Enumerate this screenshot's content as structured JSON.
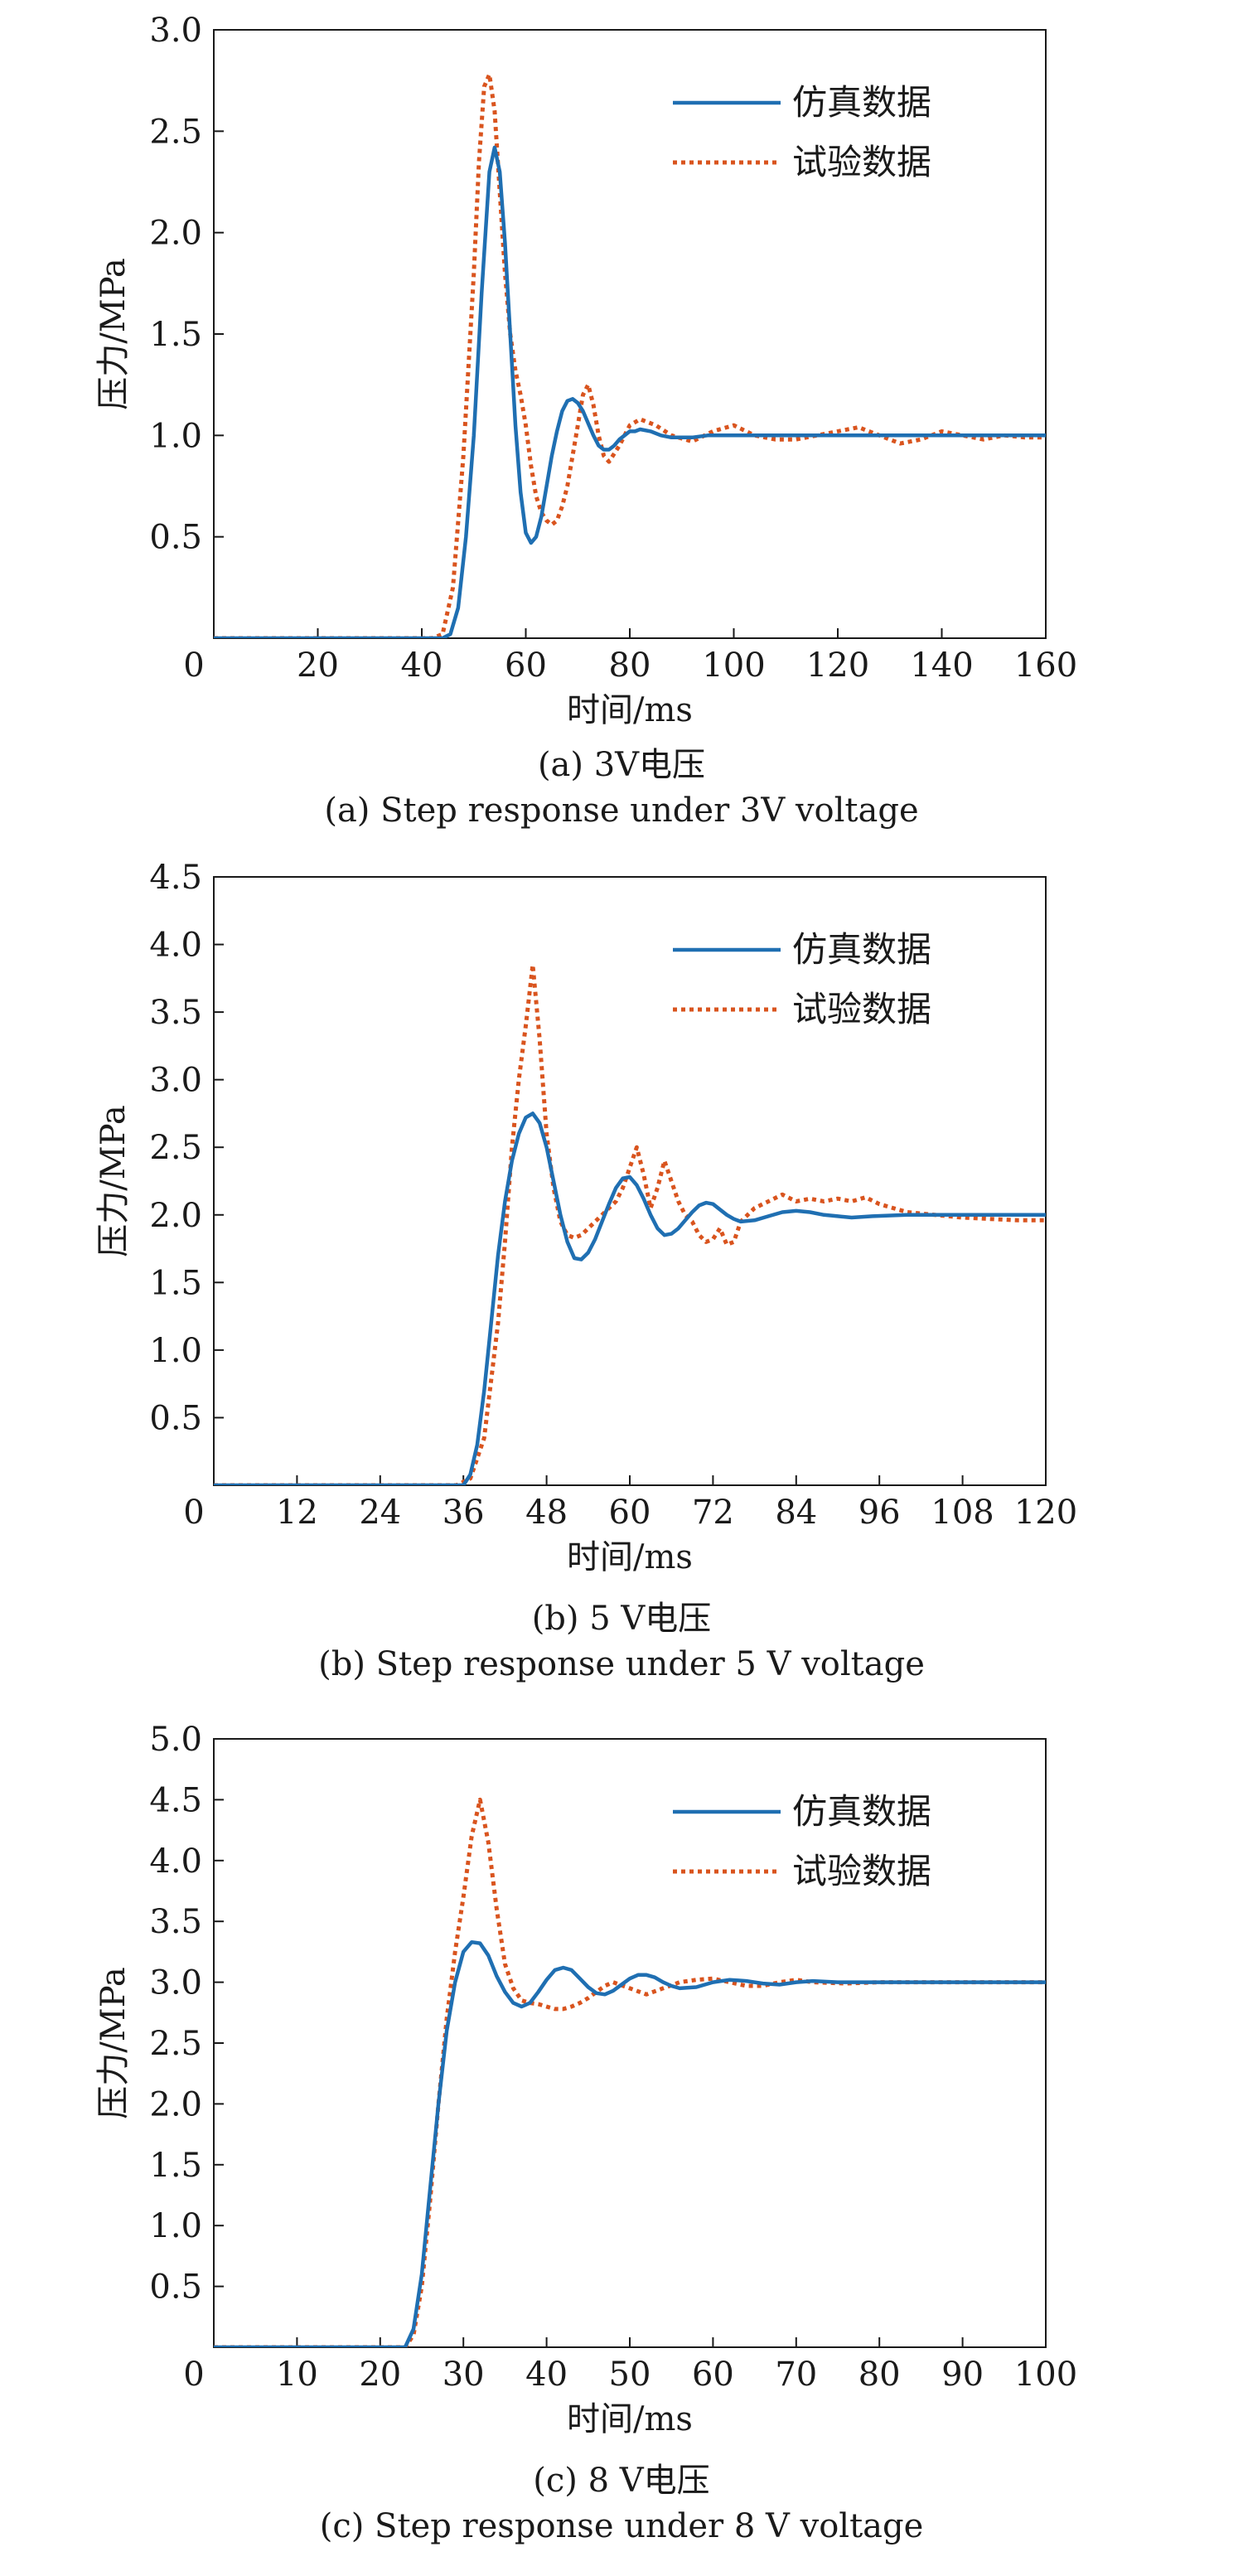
{
  "colors": {
    "sim": "#1f6fb2",
    "test": "#d9541e",
    "axis": "#1a1a1a"
  },
  "chart_data": [
    {
      "type": "line",
      "caption_cn": "(a) 3V电压",
      "caption_en": "(a) Step response under 3V voltage",
      "xlabel": "时间/ms",
      "ylabel": "压力/MPa",
      "xlim": [
        0,
        160
      ],
      "ylim": [
        0,
        3.0
      ],
      "xticks": [
        0,
        20,
        40,
        60,
        80,
        100,
        120,
        140,
        160
      ],
      "yticks": [
        0.5,
        1.0,
        1.5,
        2.0,
        2.5,
        3.0
      ],
      "ytick_labels": [
        "0.5",
        "1.0",
        "1.5",
        "2.0",
        "2.5",
        "3.0"
      ],
      "legend_position": "top-right",
      "series": [
        {
          "name": "仿真数据",
          "style": "solid",
          "x": [
            0,
            44,
            45.5,
            47,
            48.5,
            50,
            51.5,
            53,
            54,
            55,
            56,
            57,
            58,
            59,
            60,
            61,
            62,
            63,
            64,
            65,
            66,
            67,
            68,
            69,
            70,
            71,
            72,
            73,
            74,
            75,
            76,
            77,
            78,
            79,
            80,
            81,
            82,
            84,
            86,
            88,
            90,
            92,
            95,
            100,
            110,
            130,
            160
          ],
          "y": [
            0,
            0,
            0.02,
            0.15,
            0.5,
            1.0,
            1.7,
            2.3,
            2.42,
            2.3,
            1.95,
            1.5,
            1.05,
            0.72,
            0.52,
            0.47,
            0.5,
            0.6,
            0.75,
            0.9,
            1.02,
            1.12,
            1.17,
            1.18,
            1.16,
            1.12,
            1.06,
            1.0,
            0.95,
            0.93,
            0.93,
            0.95,
            0.98,
            1.0,
            1.02,
            1.02,
            1.03,
            1.02,
            1.0,
            0.99,
            0.99,
            0.99,
            1.0,
            1.0,
            1.0,
            1.0,
            1.0
          ]
        },
        {
          "name": "试验数据",
          "style": "dotted",
          "x": [
            0,
            42,
            44,
            46,
            48,
            50,
            51,
            52,
            53,
            54,
            55,
            56,
            57,
            58,
            59,
            60,
            61,
            62,
            63,
            64,
            65,
            66,
            67,
            68,
            69,
            70,
            71,
            72,
            73,
            74,
            75,
            76,
            78,
            80,
            82,
            85,
            88,
            92,
            96,
            100,
            104,
            108,
            112,
            116,
            120,
            124,
            128,
            132,
            136,
            140,
            144,
            148,
            152,
            156,
            160
          ],
          "y": [
            0,
            0,
            0.02,
            0.25,
            0.9,
            1.8,
            2.35,
            2.72,
            2.78,
            2.6,
            2.2,
            1.8,
            1.5,
            1.32,
            1.2,
            1.05,
            0.85,
            0.7,
            0.62,
            0.58,
            0.56,
            0.58,
            0.65,
            0.75,
            0.9,
            1.05,
            1.2,
            1.25,
            1.15,
            1.0,
            0.9,
            0.87,
            0.95,
            1.05,
            1.08,
            1.05,
            1.0,
            0.97,
            1.02,
            1.05,
            1.0,
            0.98,
            0.98,
            1.0,
            1.02,
            1.04,
            1.0,
            0.96,
            0.98,
            1.02,
            1.0,
            0.98,
            1.0,
            0.99,
            0.99
          ]
        }
      ]
    },
    {
      "type": "line",
      "caption_cn": "(b) 5 V电压",
      "caption_en": "(b) Step response under 5 V voltage",
      "xlabel": "时间/ms",
      "ylabel": "压力/MPa",
      "xlim": [
        0,
        120
      ],
      "ylim": [
        0,
        4.5
      ],
      "xticks": [
        0,
        12,
        24,
        36,
        48,
        60,
        72,
        84,
        96,
        108,
        120
      ],
      "yticks": [
        0.5,
        1.0,
        1.5,
        2.0,
        2.5,
        3.0,
        3.5,
        4.0,
        4.5
      ],
      "ytick_labels": [
        "0.5",
        "1.0",
        "1.5",
        "2.0",
        "2.5",
        "3.0",
        "3.5",
        "4.0",
        "4.5"
      ],
      "legend_position": "top-right",
      "series": [
        {
          "name": "仿真数据",
          "style": "solid",
          "x": [
            0,
            36,
            37,
            38,
            39,
            40,
            41,
            42,
            43,
            44,
            45,
            46,
            47,
            48,
            49,
            50,
            51,
            52,
            53,
            54,
            55,
            56,
            57,
            58,
            59,
            60,
            61,
            62,
            63,
            64,
            65,
            66,
            67,
            68,
            69,
            70,
            71,
            72,
            73,
            74,
            75,
            76,
            78,
            80,
            82,
            84,
            86,
            88,
            90,
            92,
            95,
            100,
            110,
            120
          ],
          "y": [
            0,
            0,
            0.08,
            0.3,
            0.7,
            1.2,
            1.7,
            2.1,
            2.4,
            2.6,
            2.72,
            2.75,
            2.68,
            2.5,
            2.25,
            2.0,
            1.8,
            1.68,
            1.67,
            1.72,
            1.82,
            1.95,
            2.08,
            2.2,
            2.27,
            2.28,
            2.22,
            2.12,
            2.0,
            1.9,
            1.85,
            1.86,
            1.9,
            1.96,
            2.02,
            2.07,
            2.09,
            2.08,
            2.04,
            2.0,
            1.97,
            1.95,
            1.96,
            1.99,
            2.02,
            2.03,
            2.02,
            2.0,
            1.99,
            1.98,
            1.99,
            2.0,
            2.0,
            2.0
          ]
        },
        {
          "name": "试验数据",
          "style": "dotted",
          "x": [
            0,
            35,
            37,
            39,
            41,
            42,
            43,
            44,
            45,
            46,
            47,
            48,
            49,
            50,
            51,
            52,
            53,
            54,
            55,
            56,
            57,
            58,
            59,
            60,
            61,
            62,
            63,
            64,
            65,
            66,
            67,
            68,
            69,
            70,
            71,
            72,
            73,
            74,
            75,
            76,
            78,
            80,
            82,
            84,
            86,
            88,
            90,
            92,
            94,
            96,
            98,
            100,
            104,
            108,
            112,
            116,
            120
          ],
          "y": [
            0,
            0,
            0.05,
            0.35,
            1.2,
            1.8,
            2.5,
            3.0,
            3.4,
            3.85,
            3.3,
            2.6,
            2.2,
            1.95,
            1.85,
            1.83,
            1.85,
            1.9,
            1.95,
            2.0,
            2.05,
            2.1,
            2.2,
            2.35,
            2.5,
            2.3,
            2.05,
            2.2,
            2.4,
            2.25,
            2.1,
            2.0,
            1.95,
            1.85,
            1.8,
            1.82,
            1.9,
            1.78,
            1.8,
            1.95,
            2.05,
            2.1,
            2.15,
            2.1,
            2.12,
            2.1,
            2.12,
            2.1,
            2.13,
            2.08,
            2.05,
            2.02,
            2.0,
            1.98,
            1.97,
            1.96,
            1.96
          ]
        }
      ]
    },
    {
      "type": "line",
      "caption_cn": "(c) 8 V电压",
      "caption_en": "(c) Step response under 8 V voltage",
      "xlabel": "时间/ms",
      "ylabel": "压力/MPa",
      "xlim": [
        0,
        100
      ],
      "ylim": [
        0,
        5.0
      ],
      "xticks": [
        0,
        10,
        20,
        30,
        40,
        50,
        60,
        70,
        80,
        90,
        100
      ],
      "yticks": [
        0.5,
        1.0,
        1.5,
        2.0,
        2.5,
        3.0,
        3.5,
        4.0,
        4.5,
        5.0
      ],
      "ytick_labels": [
        "0.5",
        "1.0",
        "1.5",
        "2.0",
        "2.5",
        "3.0",
        "3.5",
        "4.0",
        "4.5",
        "5.0"
      ],
      "legend_position": "top-right",
      "series": [
        {
          "name": "仿真数据",
          "style": "solid",
          "x": [
            0,
            23,
            24,
            25,
            26,
            27,
            28,
            29,
            30,
            31,
            32,
            33,
            34,
            35,
            36,
            37,
            38,
            39,
            40,
            41,
            42,
            43,
            44,
            45,
            46,
            47,
            48,
            49,
            50,
            51,
            52,
            53,
            54,
            55,
            56,
            58,
            60,
            62,
            64,
            66,
            68,
            70,
            72,
            75,
            80,
            85,
            90,
            100
          ],
          "y": [
            0,
            0,
            0.15,
            0.6,
            1.3,
            2.0,
            2.6,
            3.0,
            3.25,
            3.33,
            3.32,
            3.22,
            3.05,
            2.92,
            2.83,
            2.8,
            2.83,
            2.92,
            3.02,
            3.1,
            3.12,
            3.1,
            3.03,
            2.96,
            2.91,
            2.9,
            2.93,
            2.98,
            3.03,
            3.06,
            3.06,
            3.04,
            3.0,
            2.97,
            2.95,
            2.96,
            3.0,
            3.02,
            3.01,
            2.99,
            2.98,
            3.0,
            3.01,
            3.0,
            3.0,
            3.0,
            3.0,
            3.0
          ]
        },
        {
          "name": "试验数据",
          "style": "dotted",
          "x": [
            0,
            23,
            24,
            25,
            26,
            27,
            28,
            29,
            30,
            31,
            32,
            33,
            34,
            35,
            36,
            37,
            38,
            39,
            40,
            41,
            42,
            43,
            44,
            45,
            46,
            47,
            48,
            50,
            52,
            54,
            56,
            58,
            60,
            62,
            64,
            66,
            68,
            70,
            72,
            76,
            80,
            85,
            90,
            95,
            100
          ],
          "y": [
            0,
            0,
            0.1,
            0.5,
            1.2,
            2.0,
            2.7,
            3.25,
            3.7,
            4.2,
            4.5,
            4.15,
            3.6,
            3.15,
            2.95,
            2.85,
            2.83,
            2.82,
            2.8,
            2.78,
            2.78,
            2.8,
            2.83,
            2.87,
            2.92,
            2.97,
            3.0,
            2.95,
            2.9,
            2.95,
            3.0,
            3.02,
            3.03,
            3.0,
            2.97,
            2.97,
            3.0,
            3.02,
            3.0,
            2.99,
            3.0,
            3.0,
            3.0,
            3.0,
            3.0
          ]
        }
      ]
    }
  ]
}
